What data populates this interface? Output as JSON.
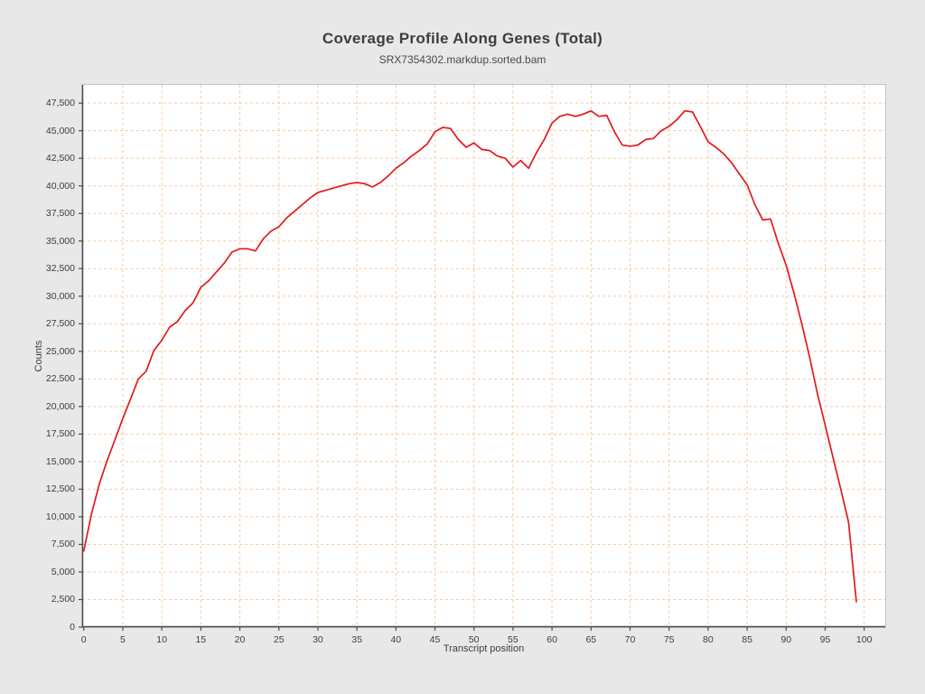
{
  "title": "Coverage Profile Along Genes (Total)",
  "subtitle": "SRX7354302.markdup.sorted.bam",
  "colors": {
    "background": "#e8e8e8",
    "plot_background": "#ffffff",
    "grid": "#f8caa0",
    "line": "#e3191c",
    "axis": "#4d4d4d",
    "text": "#3d3d3d"
  },
  "chart_data": {
    "type": "line",
    "title": "Coverage Profile Along Genes (Total)",
    "subtitle": "SRX7354302.markdup.sorted.bam",
    "xlabel": "Transcript position",
    "ylabel": "Counts",
    "legend": "none",
    "grid": "dashed",
    "xlim": [
      -0.2,
      102.7
    ],
    "ylim": [
      0,
      49150
    ],
    "xticks": [
      0,
      5,
      10,
      15,
      20,
      25,
      30,
      35,
      40,
      45,
      50,
      55,
      60,
      65,
      70,
      75,
      80,
      85,
      90,
      95,
      100
    ],
    "xtick_labels": [
      "0",
      "5",
      "10",
      "15",
      "20",
      "25",
      "30",
      "35",
      "40",
      "45",
      "50",
      "55",
      "60",
      "65",
      "70",
      "75",
      "80",
      "85",
      "90",
      "95",
      "100"
    ],
    "yticks": [
      0,
      2500,
      5000,
      7500,
      10000,
      12500,
      15000,
      17500,
      20000,
      22500,
      25000,
      27500,
      30000,
      32500,
      35000,
      37500,
      40000,
      42500,
      45000,
      47500
    ],
    "ytick_labels": [
      "0",
      "2,500",
      "5,000",
      "7,500",
      "10,000",
      "12,500",
      "15,000",
      "17,500",
      "20,000",
      "22,500",
      "25,000",
      "27,500",
      "30,000",
      "32,500",
      "35,000",
      "37,500",
      "40,000",
      "42,500",
      "45,000",
      "47,500"
    ],
    "x": [
      0,
      1,
      2,
      3,
      4,
      5,
      6,
      7,
      8,
      9,
      10,
      11,
      12,
      13,
      14,
      15,
      16,
      17,
      18,
      19,
      20,
      21,
      22,
      23,
      24,
      25,
      26,
      27,
      28,
      29,
      30,
      31,
      32,
      33,
      34,
      35,
      36,
      37,
      38,
      39,
      40,
      41,
      42,
      43,
      44,
      45,
      46,
      47,
      48,
      49,
      50,
      51,
      52,
      53,
      54,
      55,
      56,
      57,
      58,
      59,
      60,
      61,
      62,
      63,
      64,
      65,
      66,
      67,
      68,
      69,
      70,
      71,
      72,
      73,
      74,
      75,
      76,
      77,
      78,
      79,
      80,
      81,
      82,
      83,
      84,
      85,
      86,
      87,
      88,
      89,
      90,
      91,
      92,
      93,
      94,
      95,
      96,
      97,
      98,
      99
    ],
    "values": [
      6900,
      10300,
      13000,
      15100,
      17000,
      18900,
      20700,
      22500,
      23200,
      25100,
      26000,
      27200,
      27700,
      28700,
      29400,
      30800,
      31400,
      32200,
      33000,
      34000,
      34300,
      34300,
      34100,
      35200,
      35900,
      36300,
      37100,
      37700,
      38300,
      38900,
      39400,
      39600,
      39800,
      40000,
      40200,
      40300,
      40200,
      39900,
      40300,
      40900,
      41600,
      42100,
      42700,
      43200,
      43800,
      44900,
      45300,
      45200,
      44200,
      43500,
      43900,
      43300,
      43200,
      42700,
      42500,
      41700,
      42300,
      41600,
      43000,
      44200,
      45700,
      46300,
      46500,
      46300,
      46500,
      46800,
      46300,
      46400,
      44900,
      43700,
      43600,
      43700,
      44200,
      44300,
      45000,
      45400,
      46000,
      46800,
      46700,
      45400,
      44000,
      43500,
      42900,
      42100,
      41100,
      40100,
      38300,
      36900,
      37000,
      34800,
      32800,
      30300,
      27500,
      24500,
      21200,
      18300,
      15400,
      12500,
      9500,
      2300
    ]
  }
}
